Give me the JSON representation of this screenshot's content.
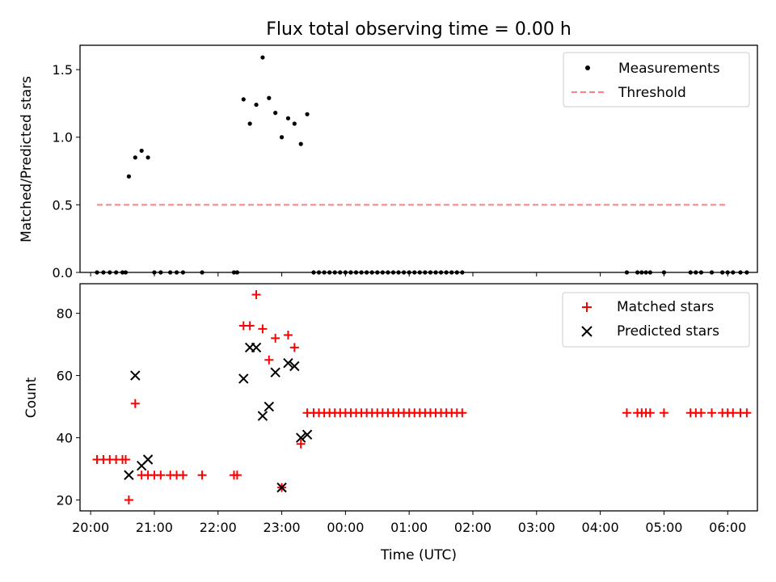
{
  "figure": {
    "title": "Flux total observing time = 0.00 h"
  },
  "chart_data": [
    {
      "type": "scatter",
      "panel": "top",
      "xlabel": "",
      "ylabel": "Matched/Predicted stars",
      "xlim": [
        "19:50",
        "06:28"
      ],
      "ylim": [
        0,
        1.68
      ],
      "yticks": [
        0.0,
        0.5,
        1.0,
        1.5
      ],
      "ytick_labels": [
        "0.0",
        "0.5",
        "1.0",
        "1.5"
      ],
      "grid": false,
      "legend_position": "top-right",
      "series": [
        {
          "name": "Measurements",
          "kind": "scatter",
          "marker": "dot",
          "color": "#000000",
          "points": [
            {
              "x": "20:06",
              "y": 0.0
            },
            {
              "x": "20:12",
              "y": 0.0
            },
            {
              "x": "20:18",
              "y": 0.0
            },
            {
              "x": "20:24",
              "y": 0.0
            },
            {
              "x": "20:30",
              "y": 0.0
            },
            {
              "x": "20:33",
              "y": 0.0
            },
            {
              "x": "20:36",
              "y": 0.71
            },
            {
              "x": "20:42",
              "y": 0.85
            },
            {
              "x": "20:48",
              "y": 0.9
            },
            {
              "x": "20:54",
              "y": 0.85
            },
            {
              "x": "21:00",
              "y": 0.0
            },
            {
              "x": "21:06",
              "y": 0.0
            },
            {
              "x": "21:15",
              "y": 0.0
            },
            {
              "x": "21:21",
              "y": 0.0
            },
            {
              "x": "21:27",
              "y": 0.0
            },
            {
              "x": "21:45",
              "y": 0.0
            },
            {
              "x": "22:15",
              "y": 0.0
            },
            {
              "x": "22:18",
              "y": 0.0
            },
            {
              "x": "22:24",
              "y": 1.28
            },
            {
              "x": "22:30",
              "y": 1.1
            },
            {
              "x": "22:36",
              "y": 1.24
            },
            {
              "x": "22:42",
              "y": 1.59
            },
            {
              "x": "22:48",
              "y": 1.29
            },
            {
              "x": "22:54",
              "y": 1.18
            },
            {
              "x": "23:00",
              "y": 1.0
            },
            {
              "x": "23:06",
              "y": 1.14
            },
            {
              "x": "23:12",
              "y": 1.1
            },
            {
              "x": "23:18",
              "y": 0.95
            },
            {
              "x": "23:24",
              "y": 1.17
            },
            {
              "x": "23:30",
              "y": 0.0
            },
            {
              "x": "23:35",
              "y": 0.0
            },
            {
              "x": "23:40",
              "y": 0.0
            },
            {
              "x": "23:45",
              "y": 0.0
            },
            {
              "x": "23:50",
              "y": 0.0
            },
            {
              "x": "23:55",
              "y": 0.0
            },
            {
              "x": "00:00",
              "y": 0.0
            },
            {
              "x": "00:05",
              "y": 0.0
            },
            {
              "x": "00:10",
              "y": 0.0
            },
            {
              "x": "00:15",
              "y": 0.0
            },
            {
              "x": "00:20",
              "y": 0.0
            },
            {
              "x": "00:25",
              "y": 0.0
            },
            {
              "x": "00:30",
              "y": 0.0
            },
            {
              "x": "00:35",
              "y": 0.0
            },
            {
              "x": "00:40",
              "y": 0.0
            },
            {
              "x": "00:45",
              "y": 0.0
            },
            {
              "x": "00:50",
              "y": 0.0
            },
            {
              "x": "00:55",
              "y": 0.0
            },
            {
              "x": "01:00",
              "y": 0.0
            },
            {
              "x": "01:05",
              "y": 0.0
            },
            {
              "x": "01:10",
              "y": 0.0
            },
            {
              "x": "01:15",
              "y": 0.0
            },
            {
              "x": "01:20",
              "y": 0.0
            },
            {
              "x": "01:25",
              "y": 0.0
            },
            {
              "x": "01:30",
              "y": 0.0
            },
            {
              "x": "01:35",
              "y": 0.0
            },
            {
              "x": "01:40",
              "y": 0.0
            },
            {
              "x": "01:45",
              "y": 0.0
            },
            {
              "x": "01:50",
              "y": 0.0
            },
            {
              "x": "04:25",
              "y": 0.0
            },
            {
              "x": "04:35",
              "y": 0.0
            },
            {
              "x": "04:39",
              "y": 0.0
            },
            {
              "x": "04:43",
              "y": 0.0
            },
            {
              "x": "04:47",
              "y": 0.0
            },
            {
              "x": "05:00",
              "y": 0.0
            },
            {
              "x": "05:25",
              "y": 0.0
            },
            {
              "x": "05:30",
              "y": 0.0
            },
            {
              "x": "05:35",
              "y": 0.0
            },
            {
              "x": "05:45",
              "y": 0.0
            },
            {
              "x": "05:55",
              "y": 0.0
            },
            {
              "x": "06:00",
              "y": 0.0
            },
            {
              "x": "06:05",
              "y": 0.0
            },
            {
              "x": "06:12",
              "y": 0.0
            },
            {
              "x": "06:18",
              "y": 0.0
            }
          ]
        },
        {
          "name": "Threshold",
          "kind": "line",
          "style": "dashed",
          "color": "#ff8080",
          "points": [
            {
              "x": "20:06",
              "y": 0.5
            },
            {
              "x": "06:00",
              "y": 0.5
            }
          ]
        }
      ]
    },
    {
      "type": "scatter",
      "panel": "bottom",
      "xlabel": "Time (UTC)",
      "ylabel": "Count",
      "xlim": [
        "19:50",
        "06:28"
      ],
      "ylim": [
        16.5,
        89.5
      ],
      "yticks": [
        20,
        40,
        60,
        80
      ],
      "ytick_labels": [
        "20",
        "40",
        "60",
        "80"
      ],
      "xticks": [
        "20:00",
        "21:00",
        "22:00",
        "23:00",
        "00:00",
        "01:00",
        "02:00",
        "03:00",
        "04:00",
        "05:00",
        "06:00"
      ],
      "grid": false,
      "legend_position": "top-right",
      "series": [
        {
          "name": "Matched stars",
          "kind": "scatter",
          "marker": "plus",
          "color": "#ff0000",
          "points": [
            {
              "x": "20:06",
              "y": 33
            },
            {
              "x": "20:12",
              "y": 33
            },
            {
              "x": "20:18",
              "y": 33
            },
            {
              "x": "20:24",
              "y": 33
            },
            {
              "x": "20:30",
              "y": 33
            },
            {
              "x": "20:33",
              "y": 33
            },
            {
              "x": "20:36",
              "y": 20
            },
            {
              "x": "20:42",
              "y": 51
            },
            {
              "x": "20:48",
              "y": 28
            },
            {
              "x": "20:54",
              "y": 28
            },
            {
              "x": "21:00",
              "y": 28
            },
            {
              "x": "21:06",
              "y": 28
            },
            {
              "x": "21:15",
              "y": 28
            },
            {
              "x": "21:21",
              "y": 28
            },
            {
              "x": "21:27",
              "y": 28
            },
            {
              "x": "21:45",
              "y": 28
            },
            {
              "x": "22:15",
              "y": 28
            },
            {
              "x": "22:18",
              "y": 28
            },
            {
              "x": "22:24",
              "y": 76
            },
            {
              "x": "22:30",
              "y": 76
            },
            {
              "x": "22:36",
              "y": 86
            },
            {
              "x": "22:42",
              "y": 75
            },
            {
              "x": "22:48",
              "y": 65
            },
            {
              "x": "22:54",
              "y": 72
            },
            {
              "x": "23:00",
              "y": 24
            },
            {
              "x": "23:06",
              "y": 73
            },
            {
              "x": "23:12",
              "y": 69
            },
            {
              "x": "23:18",
              "y": 38
            },
            {
              "x": "23:24",
              "y": 48
            },
            {
              "x": "23:30",
              "y": 48
            },
            {
              "x": "23:35",
              "y": 48
            },
            {
              "x": "23:40",
              "y": 48
            },
            {
              "x": "23:45",
              "y": 48
            },
            {
              "x": "23:50",
              "y": 48
            },
            {
              "x": "23:55",
              "y": 48
            },
            {
              "x": "00:00",
              "y": 48
            },
            {
              "x": "00:05",
              "y": 48
            },
            {
              "x": "00:10",
              "y": 48
            },
            {
              "x": "00:15",
              "y": 48
            },
            {
              "x": "00:20",
              "y": 48
            },
            {
              "x": "00:25",
              "y": 48
            },
            {
              "x": "00:30",
              "y": 48
            },
            {
              "x": "00:35",
              "y": 48
            },
            {
              "x": "00:40",
              "y": 48
            },
            {
              "x": "00:45",
              "y": 48
            },
            {
              "x": "00:50",
              "y": 48
            },
            {
              "x": "00:55",
              "y": 48
            },
            {
              "x": "01:00",
              "y": 48
            },
            {
              "x": "01:05",
              "y": 48
            },
            {
              "x": "01:10",
              "y": 48
            },
            {
              "x": "01:15",
              "y": 48
            },
            {
              "x": "01:20",
              "y": 48
            },
            {
              "x": "01:25",
              "y": 48
            },
            {
              "x": "01:30",
              "y": 48
            },
            {
              "x": "01:35",
              "y": 48
            },
            {
              "x": "01:40",
              "y": 48
            },
            {
              "x": "01:45",
              "y": 48
            },
            {
              "x": "01:50",
              "y": 48
            },
            {
              "x": "04:25",
              "y": 48
            },
            {
              "x": "04:35",
              "y": 48
            },
            {
              "x": "04:39",
              "y": 48
            },
            {
              "x": "04:43",
              "y": 48
            },
            {
              "x": "04:47",
              "y": 48
            },
            {
              "x": "05:00",
              "y": 48
            },
            {
              "x": "05:25",
              "y": 48
            },
            {
              "x": "05:30",
              "y": 48
            },
            {
              "x": "05:35",
              "y": 48
            },
            {
              "x": "05:45",
              "y": 48
            },
            {
              "x": "05:55",
              "y": 48
            },
            {
              "x": "06:00",
              "y": 48
            },
            {
              "x": "06:05",
              "y": 48
            },
            {
              "x": "06:12",
              "y": 48
            },
            {
              "x": "06:18",
              "y": 48
            }
          ]
        },
        {
          "name": "Predicted stars",
          "kind": "scatter",
          "marker": "x",
          "color": "#000000",
          "points": [
            {
              "x": "20:36",
              "y": 28
            },
            {
              "x": "20:42",
              "y": 60
            },
            {
              "x": "20:48",
              "y": 31
            },
            {
              "x": "20:54",
              "y": 33
            },
            {
              "x": "22:24",
              "y": 59
            },
            {
              "x": "22:30",
              "y": 69
            },
            {
              "x": "22:36",
              "y": 69
            },
            {
              "x": "22:42",
              "y": 47
            },
            {
              "x": "22:48",
              "y": 50
            },
            {
              "x": "22:54",
              "y": 61
            },
            {
              "x": "23:00",
              "y": 24
            },
            {
              "x": "23:06",
              "y": 64
            },
            {
              "x": "23:12",
              "y": 63
            },
            {
              "x": "23:18",
              "y": 40
            },
            {
              "x": "23:24",
              "y": 41
            }
          ]
        }
      ]
    }
  ]
}
